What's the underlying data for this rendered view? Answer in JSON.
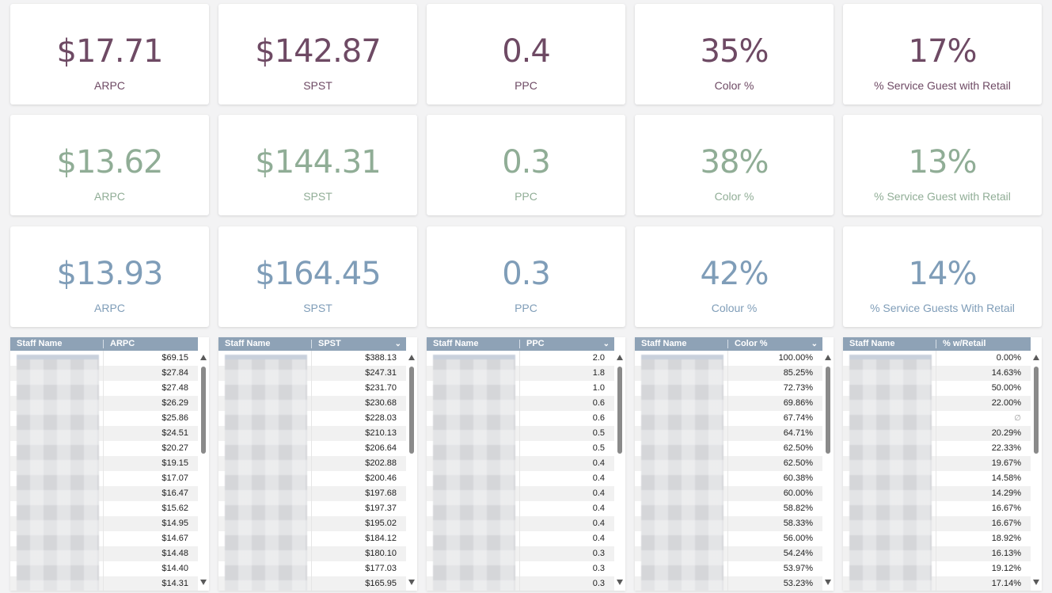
{
  "kpi_rows": [
    {
      "color": "#6e4a64",
      "cards": [
        {
          "value": "$17.71",
          "label": "ARPC"
        },
        {
          "value": "$142.87",
          "label": "SPST"
        },
        {
          "value": "0.4",
          "label": "PPC"
        },
        {
          "value": "35%",
          "label": "Color %"
        },
        {
          "value": "17%",
          "label": "% Service Guest with Retail"
        }
      ]
    },
    {
      "color": "#90ad96",
      "cards": [
        {
          "value": "$13.62",
          "label": "ARPC"
        },
        {
          "value": "$144.31",
          "label": "SPST"
        },
        {
          "value": "0.3",
          "label": "PPC"
        },
        {
          "value": "38%",
          "label": "Color %"
        },
        {
          "value": "13%",
          "label": "% Service Guest with Retail"
        }
      ]
    },
    {
      "color": "#7f9db8",
      "cards": [
        {
          "value": "$13.93",
          "label": "ARPC"
        },
        {
          "value": "$164.45",
          "label": "SPST"
        },
        {
          "value": "0.3",
          "label": "PPC"
        },
        {
          "value": "42%",
          "label": "Colour %"
        },
        {
          "value": "14%",
          "label": "% Service Guests With Retail"
        }
      ]
    }
  ],
  "tables": [
    {
      "col1": "Staff Name",
      "col2": "ARPC",
      "sort_icon": "",
      "values": [
        "$69.15",
        "$27.84",
        "$27.48",
        "$26.29",
        "$25.86",
        "$24.51",
        "$20.27",
        "$19.15",
        "$17.07",
        "$16.47",
        "$15.62",
        "$14.95",
        "$14.67",
        "$14.48",
        "$14.40",
        "$14.31"
      ]
    },
    {
      "col1": "Staff Name",
      "col2": "SPST",
      "sort_icon": "⌄",
      "values": [
        "$388.13",
        "$247.31",
        "$231.70",
        "$230.68",
        "$228.03",
        "$210.13",
        "$206.64",
        "$202.88",
        "$200.46",
        "$197.68",
        "$197.37",
        "$195.02",
        "$184.12",
        "$180.10",
        "$177.03",
        "$165.95"
      ]
    },
    {
      "col1": "Staff Name",
      "col2": "PPC",
      "sort_icon": "⌄",
      "values": [
        "2.0",
        "1.8",
        "1.0",
        "0.6",
        "0.6",
        "0.5",
        "0.5",
        "0.4",
        "0.4",
        "0.4",
        "0.4",
        "0.4",
        "0.4",
        "0.3",
        "0.3",
        "0.3"
      ]
    },
    {
      "col1": "Staff Name",
      "col2": "Color %",
      "sort_icon": "⌄",
      "values": [
        "100.00%",
        "85.25%",
        "72.73%",
        "69.86%",
        "67.74%",
        "64.71%",
        "62.50%",
        "62.50%",
        "60.38%",
        "60.00%",
        "58.82%",
        "58.33%",
        "56.00%",
        "54.24%",
        "53.97%",
        "53.23%"
      ]
    },
    {
      "col1": "Staff Name",
      "col2": "% w/Retail",
      "sort_icon": "",
      "values": [
        "0.00%",
        "14.63%",
        "50.00%",
        "22.00%",
        "∅",
        "20.29%",
        "22.33%",
        "19.67%",
        "14.58%",
        "14.29%",
        "16.67%",
        "16.67%",
        "18.92%",
        "16.13%",
        "19.12%",
        "17.14%"
      ]
    }
  ]
}
